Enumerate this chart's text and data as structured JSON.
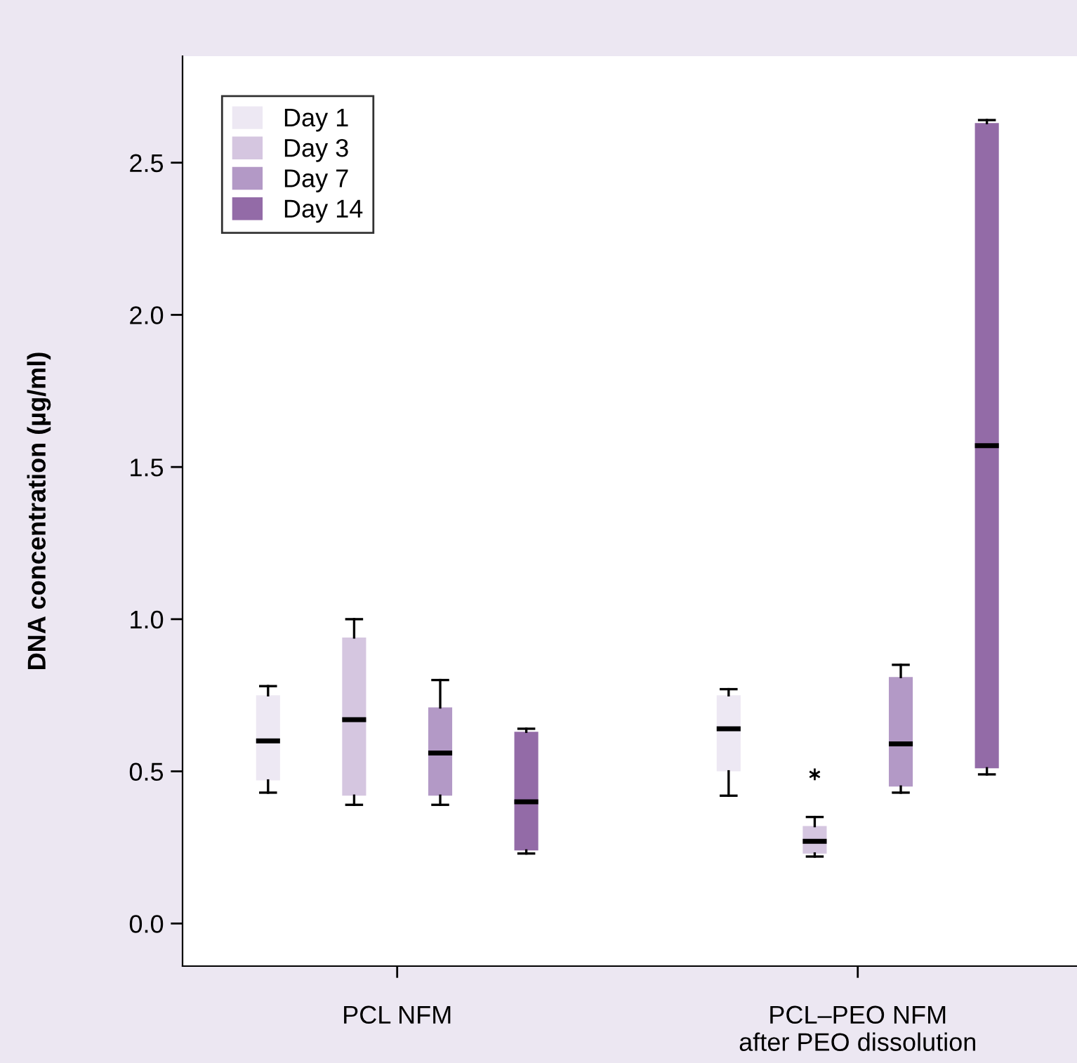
{
  "chart_data": {
    "type": "box",
    "ylabel": "DNA concentration (µg/ml)",
    "categories": [
      "PCL NFM",
      "PCL–PEO NFM\nafter PEO dissolution"
    ],
    "series": [
      {
        "name": "Day 1",
        "color": "#ede8f3",
        "boxes": [
          {
            "low": 0.43,
            "q1": 0.47,
            "median": 0.6,
            "q3": 0.75,
            "high": 0.78
          },
          {
            "low": 0.42,
            "q1": 0.5,
            "median": 0.64,
            "q3": 0.75,
            "high": 0.77
          }
        ]
      },
      {
        "name": "Day 3",
        "color": "#d5c6e0",
        "boxes": [
          {
            "low": 0.39,
            "q1": 0.42,
            "median": 0.67,
            "q3": 0.94,
            "high": 1.0
          },
          {
            "low": 0.22,
            "q1": 0.23,
            "median": 0.27,
            "q3": 0.32,
            "high": 0.35,
            "outliers": [
              0.49
            ]
          }
        ]
      },
      {
        "name": "Day 7",
        "color": "#b399c6",
        "boxes": [
          {
            "low": 0.39,
            "q1": 0.42,
            "median": 0.56,
            "q3": 0.71,
            "high": 0.8
          },
          {
            "low": 0.43,
            "q1": 0.45,
            "median": 0.59,
            "q3": 0.81,
            "high": 0.85
          }
        ]
      },
      {
        "name": "Day 14",
        "color": "#936ba7",
        "boxes": [
          {
            "low": 0.23,
            "q1": 0.24,
            "median": 0.4,
            "q3": 0.63,
            "high": 0.64
          },
          {
            "low": 0.49,
            "q1": 0.51,
            "median": 1.57,
            "q3": 2.63,
            "high": 2.64
          }
        ]
      }
    ],
    "ylim": [
      -0.14,
      2.85
    ],
    "yticks": [
      {
        "value": 0,
        "label": "0.0"
      },
      0.5,
      {
        "value": 1,
        "label": "1.0"
      },
      1.5,
      {
        "value": 2,
        "label": "2.0"
      },
      2.5
    ],
    "grid": false,
    "legend": "top left"
  }
}
